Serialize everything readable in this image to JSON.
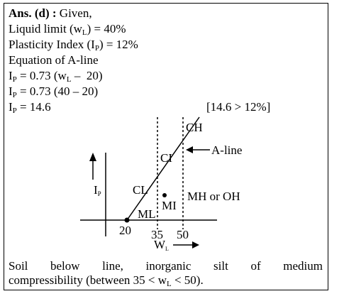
{
  "answer": {
    "label": "Ans. (d) :",
    "intro": "Given,"
  },
  "lines": [
    [
      {
        "t": "Liquid limit (w"
      },
      {
        "sub": "L"
      },
      {
        "t": ") = 40%"
      }
    ],
    [
      {
        "t": "Plasticity Index (I"
      },
      {
        "sub": "P"
      },
      {
        "t": ") = 12%"
      }
    ],
    [
      {
        "t": "Equation of A-line"
      }
    ],
    [
      {
        "t": "I"
      },
      {
        "sub": "P"
      },
      {
        "t": " = 0.73 (w"
      },
      {
        "sub": "L"
      },
      {
        "t": " –  20)"
      }
    ],
    [
      {
        "t": "I"
      },
      {
        "sub": "P"
      },
      {
        "t": " = 0.73 (40 – 20)"
      }
    ],
    [
      {
        "t": "I"
      },
      {
        "sub": "P"
      },
      {
        "t": " = 14.6"
      }
    ]
  ],
  "check": "[14.6 > 12%]",
  "diagram": {
    "ch": "CH",
    "ci": "CI",
    "a_line": "A-line",
    "y_axis": "I",
    "y_axis_sub": "P",
    "cl": "CL",
    "mi": "MI",
    "mh": "MH or OH",
    "ml": "ML",
    "x_ticks": [
      "20",
      "35",
      "50"
    ],
    "x_axis": "W",
    "x_axis_sub": "L"
  },
  "conclusion": {
    "words": [
      "Soil",
      "below",
      "line,",
      "inorganic",
      "silt",
      "of",
      "medium"
    ],
    "second_line": [
      {
        "t": "compressibility (between 35 < w"
      },
      {
        "sub": "L"
      },
      {
        "t": " < 50)."
      }
    ]
  }
}
